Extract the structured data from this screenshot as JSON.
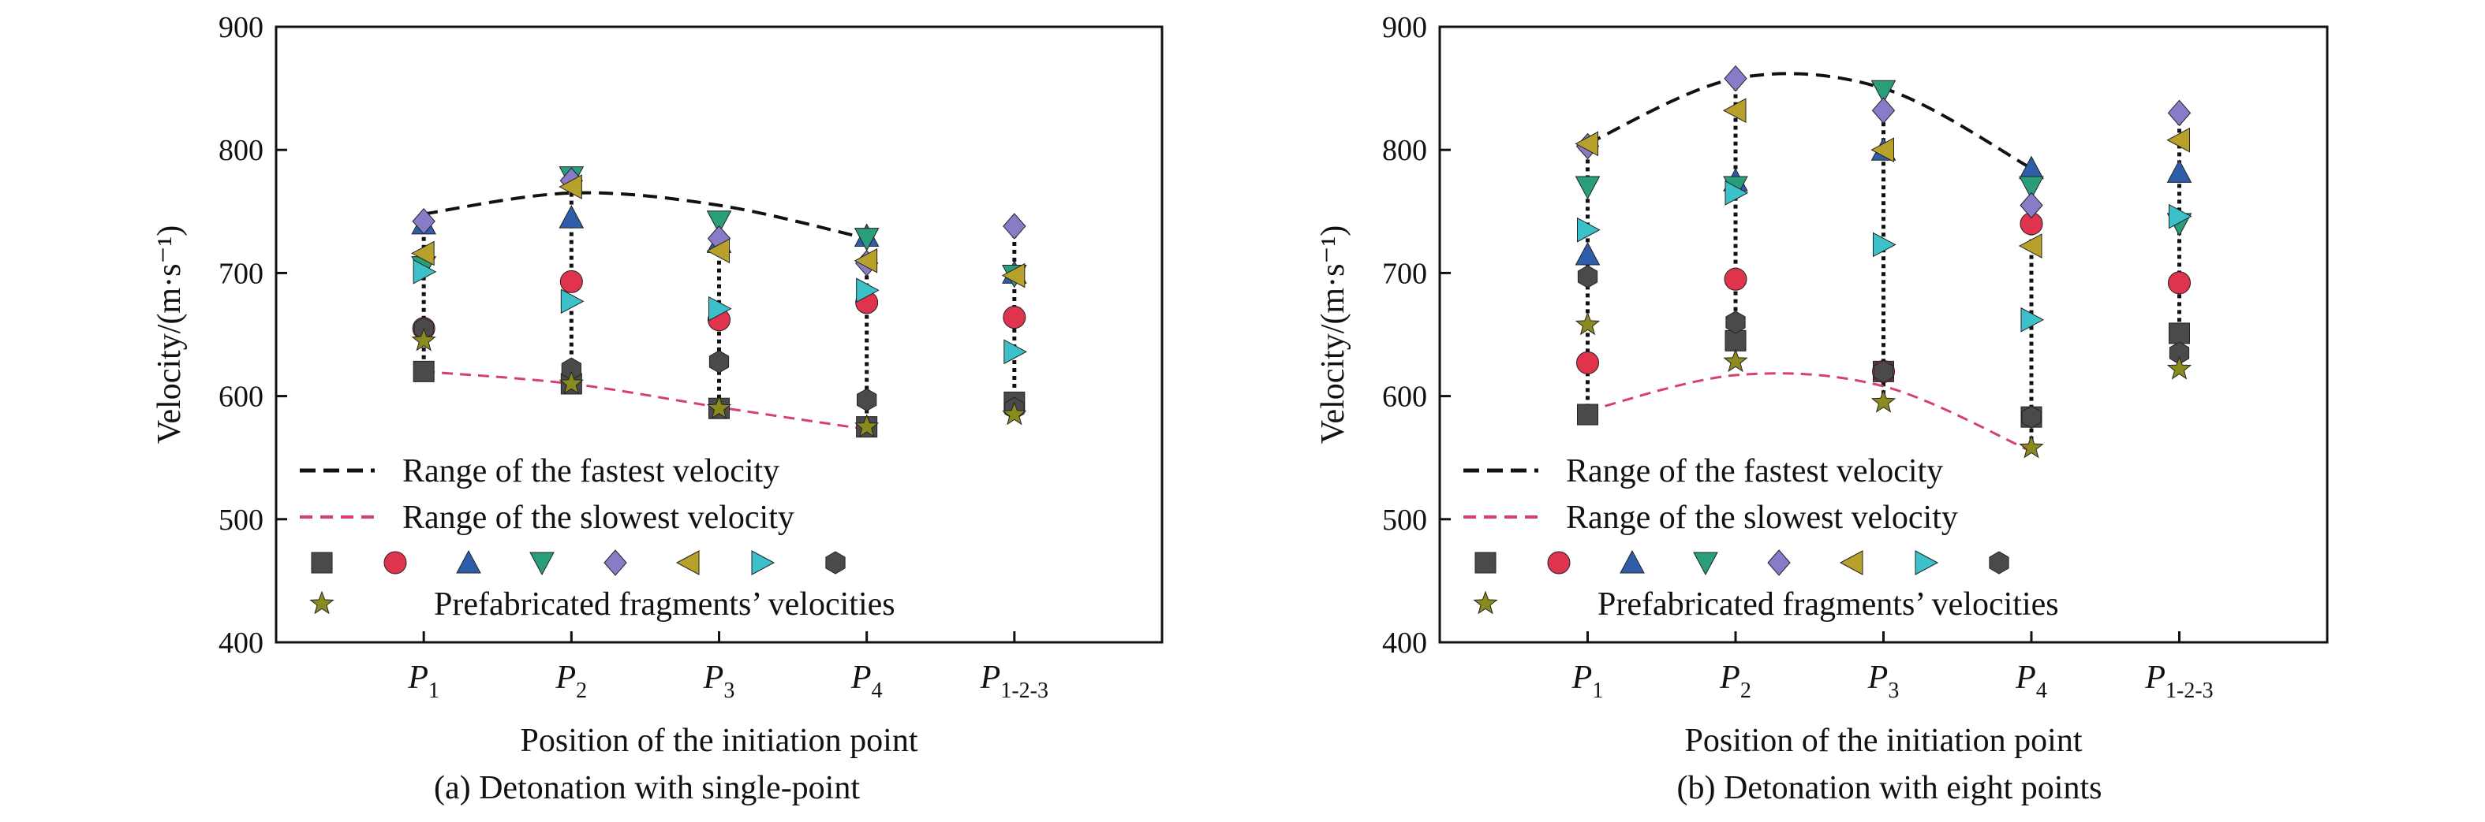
{
  "chart_data": [
    {
      "id": "a",
      "type": "scatter",
      "caption": "(a) Detonation with single-point",
      "xlabel": "Position of the initiation point",
      "ylabel": "Velocity/(m·s⁻¹)",
      "ylim": [
        400,
        900
      ],
      "yticks": [
        400,
        500,
        600,
        700,
        800,
        900
      ],
      "categories": [
        {
          "main": "P",
          "sub": "1"
        },
        {
          "main": "P",
          "sub": "2"
        },
        {
          "main": "P",
          "sub": "3"
        },
        {
          "main": "P",
          "sub": "4"
        },
        {
          "main": "P",
          "sub": "1-2-3"
        }
      ],
      "series": [
        {
          "marker": "square",
          "color": "#4a4a4a",
          "values": [
            620,
            610,
            590,
            575,
            595
          ]
        },
        {
          "marker": "circle",
          "color": "#e0344e",
          "values": [
            655,
            693,
            662,
            676,
            664
          ]
        },
        {
          "marker": "tri-up",
          "color": "#2e5eaa",
          "values": [
            740,
            745,
            725,
            730,
            700
          ]
        },
        {
          "marker": "tri-down",
          "color": "#2a9d7a",
          "values": [
            705,
            778,
            742,
            728,
            698
          ]
        },
        {
          "marker": "diamond",
          "color": "#8a7bc8",
          "values": [
            742,
            775,
            728,
            708,
            738
          ]
        },
        {
          "marker": "tri-left",
          "color": "#b8a12a",
          "values": [
            716,
            770,
            718,
            710,
            698
          ]
        },
        {
          "marker": "tri-right",
          "color": "#3cc0c9",
          "values": [
            701,
            677,
            671,
            686,
            636
          ]
        },
        {
          "marker": "hexagon",
          "color": "#4a4a4a",
          "values": [
            655,
            622,
            628,
            597,
            590
          ]
        },
        {
          "marker": "star",
          "color": "#8a8a1e",
          "values": [
            645,
            610,
            590,
            575,
            585
          ]
        }
      ],
      "fast_curve": {
        "x": [
          1,
          2,
          3,
          4
        ],
        "y": [
          748,
          765,
          755,
          728
        ]
      },
      "slow_curve": {
        "x": [
          1,
          2,
          3,
          4
        ],
        "y": [
          620,
          610,
          591,
          573
        ]
      }
    },
    {
      "id": "b",
      "type": "scatter",
      "caption": "(b) Detonation with eight points",
      "xlabel": "Position of the initiation point",
      "ylabel": "Velocity/(m·s⁻¹)",
      "ylim": [
        400,
        900
      ],
      "yticks": [
        400,
        500,
        600,
        700,
        800,
        900
      ],
      "categories": [
        {
          "main": "P",
          "sub": "1"
        },
        {
          "main": "P",
          "sub": "2"
        },
        {
          "main": "P",
          "sub": "3"
        },
        {
          "main": "P",
          "sub": "4"
        },
        {
          "main": "P",
          "sub": "1-2-3"
        }
      ],
      "series": [
        {
          "marker": "square",
          "color": "#4a4a4a",
          "values": [
            585,
            645,
            620,
            583,
            651
          ]
        },
        {
          "marker": "circle",
          "color": "#e0344e",
          "values": [
            627,
            695,
            620,
            740,
            692
          ]
        },
        {
          "marker": "tri-up",
          "color": "#2e5eaa",
          "values": [
            715,
            775,
            800,
            785,
            782
          ]
        },
        {
          "marker": "tri-down",
          "color": "#2a9d7a",
          "values": [
            770,
            770,
            848,
            770,
            740
          ]
        },
        {
          "marker": "diamond",
          "color": "#8a7bc8",
          "values": [
            803,
            858,
            832,
            755,
            830
          ]
        },
        {
          "marker": "tri-left",
          "color": "#b8a12a",
          "values": [
            805,
            832,
            800,
            722,
            808
          ]
        },
        {
          "marker": "tri-right",
          "color": "#3cc0c9",
          "values": [
            735,
            765,
            723,
            662,
            746
          ]
        },
        {
          "marker": "hexagon",
          "color": "#4a4a4a",
          "values": [
            697,
            660,
            620,
            583,
            635
          ]
        },
        {
          "marker": "star",
          "color": "#8a8a1e",
          "values": [
            658,
            628,
            595,
            558,
            622
          ]
        }
      ],
      "fast_curve": {
        "x": [
          1,
          2,
          3,
          4
        ],
        "y": [
          805,
          858,
          850,
          785
        ]
      },
      "slow_curve": {
        "x": [
          1,
          2,
          3,
          4
        ],
        "y": [
          588,
          617,
          608,
          555
        ]
      }
    }
  ],
  "legend": {
    "fast_label": "Range of the fastest velocity",
    "slow_label": "Range of the slowest velocity",
    "fragments_label": "Prefabricated fragments’ velocities",
    "fast_color": "#111111",
    "slow_color": "#d6416b"
  }
}
